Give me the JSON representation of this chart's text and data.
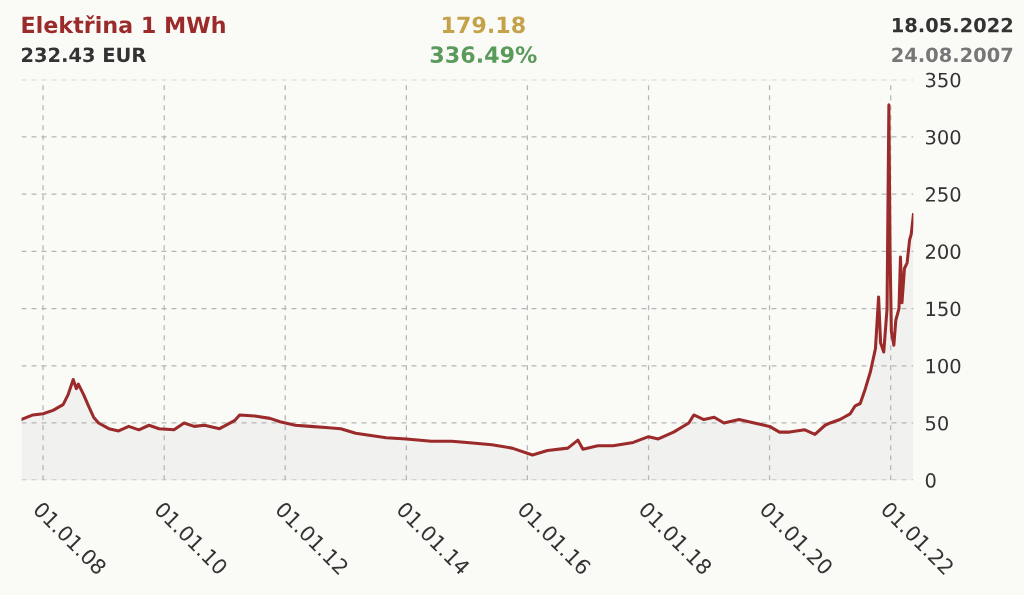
{
  "chart_data": {
    "type": "area",
    "title": "Elektřina 1 MWh",
    "annotations": [
      "232.43 EUR",
      "179.18",
      "336.49%",
      "18.05.2022",
      "24.08.2007"
    ],
    "x": [
      "2007-08-24",
      "2007-11-01",
      "2008-01-01",
      "2008-03-01",
      "2008-05-01",
      "2008-06-01",
      "2008-07-01",
      "2008-07-20",
      "2008-08-01",
      "2008-09-01",
      "2008-10-01",
      "2008-11-01",
      "2008-12-01",
      "2009-02-01",
      "2009-04-01",
      "2009-06-01",
      "2009-08-01",
      "2009-10-01",
      "2009-12-01",
      "2010-03-01",
      "2010-05-01",
      "2010-07-01",
      "2010-09-01",
      "2010-12-01",
      "2011-03-01",
      "2011-04-01",
      "2011-07-01",
      "2011-10-01",
      "2011-12-01",
      "2012-03-01",
      "2012-06-01",
      "2012-09-01",
      "2012-12-01",
      "2013-03-01",
      "2013-06-01",
      "2013-09-01",
      "2014-01-01",
      "2014-06-01",
      "2014-10-01",
      "2015-01-01",
      "2015-06-01",
      "2015-10-01",
      "2016-02-01",
      "2016-05-01",
      "2016-09-01",
      "2016-11-01",
      "2016-12-01",
      "2017-03-01",
      "2017-06-01",
      "2017-10-01",
      "2018-01-01",
      "2018-03-01",
      "2018-06-01",
      "2018-09-01",
      "2018-10-01",
      "2018-12-01",
      "2019-02-01",
      "2019-04-01",
      "2019-07-01",
      "2019-10-01",
      "2020-01-01",
      "2020-03-01",
      "2020-05-01",
      "2020-08-01",
      "2020-10-01",
      "2020-12-01",
      "2021-01-01",
      "2021-03-01",
      "2021-05-01",
      "2021-06-01",
      "2021-07-01",
      "2021-08-01",
      "2021-09-01",
      "2021-10-01",
      "2021-10-20",
      "2021-11-01",
      "2021-11-20",
      "2021-12-10",
      "2021-12-21",
      "2021-12-28",
      "2022-01-05",
      "2022-01-20",
      "2022-02-01",
      "2022-02-20",
      "2022-03-01",
      "2022-03-10",
      "2022-03-25",
      "2022-04-10",
      "2022-04-25",
      "2022-05-05",
      "2022-05-18"
    ],
    "series": [
      {
        "color": "#9b2b2b",
        "values": [
          53,
          57,
          58,
          61,
          66,
          75,
          88,
          80,
          84,
          75,
          65,
          55,
          50,
          45,
          43,
          47,
          44,
          48,
          45,
          44,
          50,
          47,
          48,
          45,
          52,
          57,
          56,
          54,
          51,
          48,
          47,
          46,
          45,
          41,
          39,
          37,
          36,
          34,
          34,
          33,
          31,
          28,
          22,
          26,
          28,
          35,
          27,
          30,
          30,
          33,
          38,
          36,
          42,
          50,
          57,
          53,
          55,
          50,
          53,
          50,
          47,
          42,
          42,
          44,
          40,
          48,
          50,
          53,
          58,
          65,
          67,
          80,
          95,
          115,
          160,
          120,
          112,
          150,
          328,
          200,
          130,
          118,
          140,
          150,
          195,
          155,
          185,
          190,
          210,
          215,
          232
        ]
      }
    ],
    "xlim": [
      "2007-08-24",
      "2022-05-18"
    ],
    "xticks": [
      {
        "value": "2008-01-01",
        "label": "01.01.08"
      },
      {
        "value": "2010-01-01",
        "label": "01.01.10"
      },
      {
        "value": "2012-01-01",
        "label": "01.01.12"
      },
      {
        "value": "2014-01-01",
        "label": "01.01.14"
      },
      {
        "value": "2016-01-01",
        "label": "01.01.16"
      },
      {
        "value": "2018-01-01",
        "label": "01.01.18"
      },
      {
        "value": "2020-01-01",
        "label": "01.01.20"
      },
      {
        "value": "2022-01-01",
        "label": "01.01.22"
      }
    ],
    "ylim": [
      0,
      350
    ],
    "yticks": [
      0,
      50,
      100,
      150,
      200,
      250,
      300,
      350
    ],
    "grid": true,
    "legend": false
  }
}
